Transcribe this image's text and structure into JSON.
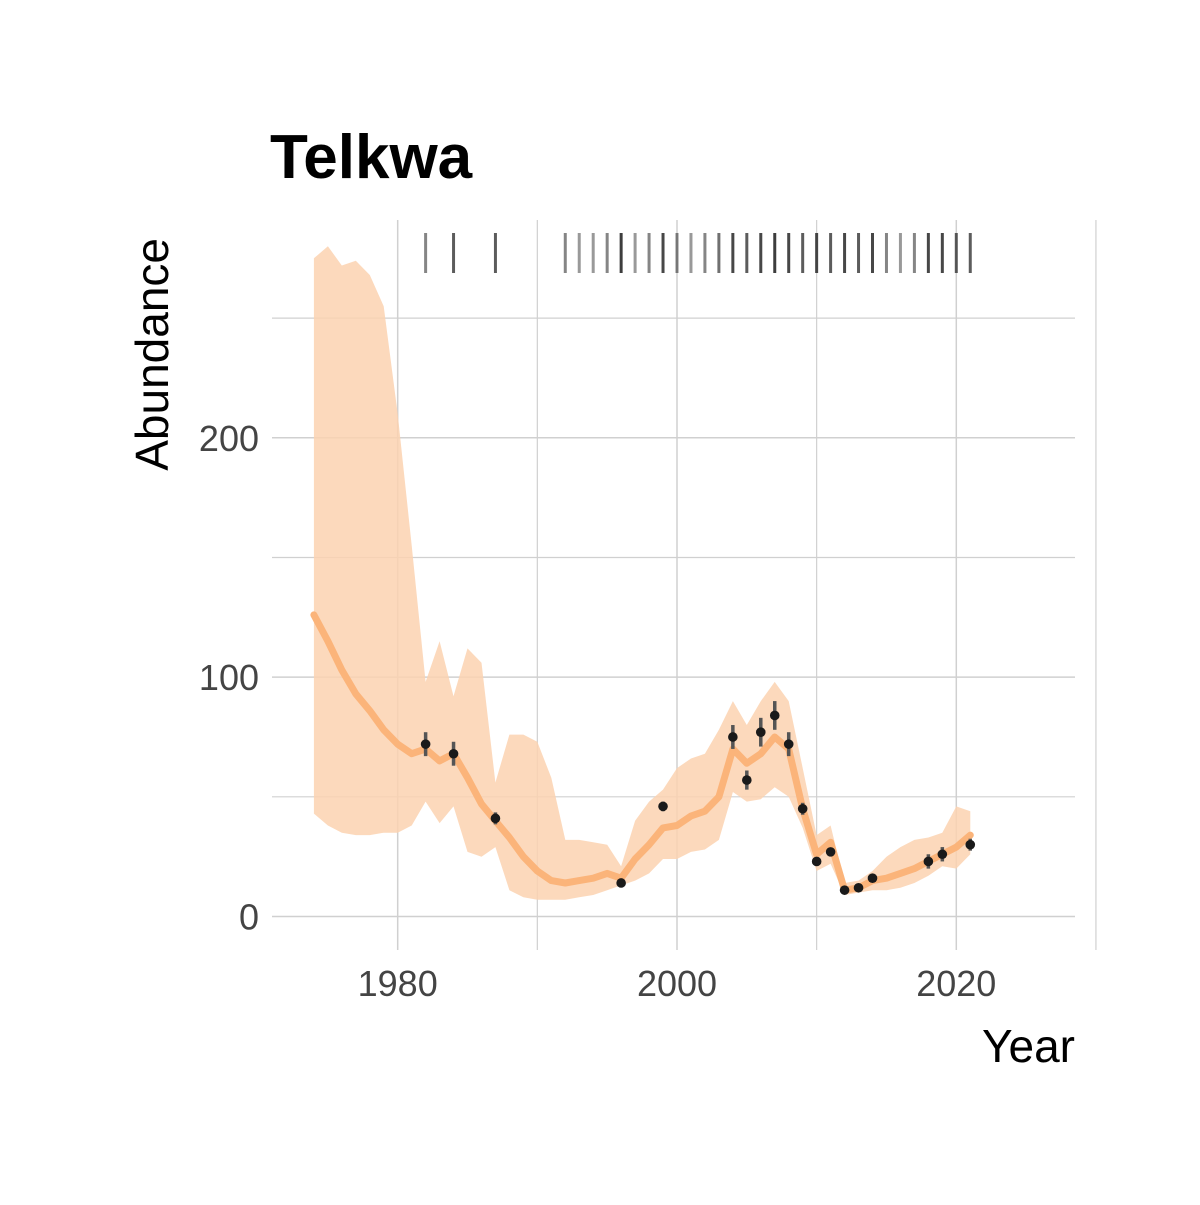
{
  "chart_data": {
    "type": "line",
    "title": "Telkwa",
    "xlabel": "Year",
    "ylabel": "Abundance",
    "xlim": [
      1971,
      2028.5
    ],
    "ylim": [
      -14,
      291
    ],
    "x_ticks": [
      1980,
      2000,
      2020
    ],
    "x_tick_labels": [
      "1980",
      "2000",
      "2020"
    ],
    "y_ticks": [
      0,
      100,
      200
    ],
    "y_tick_labels": [
      "0",
      "100",
      "200"
    ],
    "grid": true,
    "legend": "none",
    "colors": {
      "line": "#fbb47a",
      "ribbon": "#fbd2b0",
      "points": "#1a1a1a",
      "rug": "#333333",
      "grid": "#d0d0d0"
    },
    "estimate_series": {
      "x": [
        1974,
        1975,
        1976,
        1977,
        1978,
        1979,
        1980,
        1981,
        1982,
        1983,
        1984,
        1985,
        1986,
        1987,
        1988,
        1989,
        1990,
        1991,
        1992,
        1993,
        1994,
        1995,
        1996,
        1997,
        1998,
        1999,
        2000,
        2001,
        2002,
        2003,
        2004,
        2005,
        2006,
        2007,
        2008,
        2009,
        2010,
        2011,
        2012,
        2013,
        2014,
        2015,
        2016,
        2017,
        2018,
        2019,
        2020,
        2021
      ],
      "y": [
        126,
        115,
        103,
        93,
        86,
        78,
        72,
        68,
        70,
        65,
        68,
        58,
        47,
        40,
        33,
        25,
        19,
        15,
        14,
        15,
        16,
        18,
        16,
        24,
        30,
        37,
        38,
        42,
        44,
        50,
        70,
        64,
        68,
        75,
        70,
        45,
        26,
        31,
        11,
        12,
        15,
        16,
        18,
        20,
        23,
        26,
        29,
        34
      ]
    },
    "ci_lower": [
      43,
      38,
      35,
      34,
      34,
      35,
      35,
      38,
      48,
      39,
      46,
      27,
      25,
      29,
      11,
      8,
      7,
      7,
      7,
      8,
      9,
      11,
      13,
      15,
      18,
      24,
      24,
      27,
      28,
      32,
      52,
      48,
      49,
      54,
      50,
      37,
      19,
      22,
      9,
      10,
      11,
      11,
      12,
      14,
      17,
      21,
      20,
      26
    ],
    "ci_upper": [
      275,
      280,
      272,
      274,
      268,
      255,
      210,
      155,
      98,
      115,
      92,
      112,
      106,
      56,
      76,
      76,
      73,
      58,
      32,
      32,
      31,
      30,
      21,
      40,
      48,
      53,
      62,
      66,
      68,
      78,
      90,
      80,
      90,
      98,
      90,
      62,
      34,
      38,
      14,
      15,
      19,
      25,
      29,
      32,
      33,
      35,
      46,
      44
    ],
    "observations": {
      "x": [
        1982,
        1984,
        1987,
        1996,
        1999,
        2004,
        2005,
        2006,
        2007,
        2008,
        2009,
        2010,
        2011,
        2012,
        2013,
        2014,
        2018,
        2019,
        2021
      ],
      "y": [
        72,
        68,
        41,
        14,
        46,
        75,
        57,
        77,
        84,
        72,
        45,
        23,
        27,
        11,
        12,
        16,
        23,
        26,
        30
      ],
      "err": [
        5,
        5,
        2.5,
        0.5,
        2,
        5,
        4,
        6,
        6,
        5,
        2.5,
        1.5,
        1.5,
        0.5,
        0.5,
        0.5,
        3,
        3,
        2.5
      ]
    },
    "rug_years": [
      1982,
      1984,
      1987,
      1992,
      1993,
      1994,
      1995,
      1996,
      1997,
      1998,
      1999,
      2000,
      2001,
      2002,
      2003,
      2004,
      2005,
      2006,
      2007,
      2008,
      2009,
      2010,
      2011,
      2012,
      2013,
      2014,
      2015,
      2016,
      2017,
      2018,
      2019,
      2020,
      2021
    ],
    "rug_darkness": [
      0.6,
      0.8,
      0.8,
      0.6,
      0.5,
      0.5,
      0.6,
      0.95,
      0.5,
      0.6,
      0.9,
      0.6,
      0.5,
      0.6,
      0.7,
      0.9,
      0.8,
      0.9,
      0.95,
      0.9,
      0.8,
      0.9,
      0.8,
      0.9,
      0.8,
      0.9,
      0.6,
      0.5,
      0.6,
      0.9,
      0.9,
      0.8,
      0.8
    ]
  }
}
